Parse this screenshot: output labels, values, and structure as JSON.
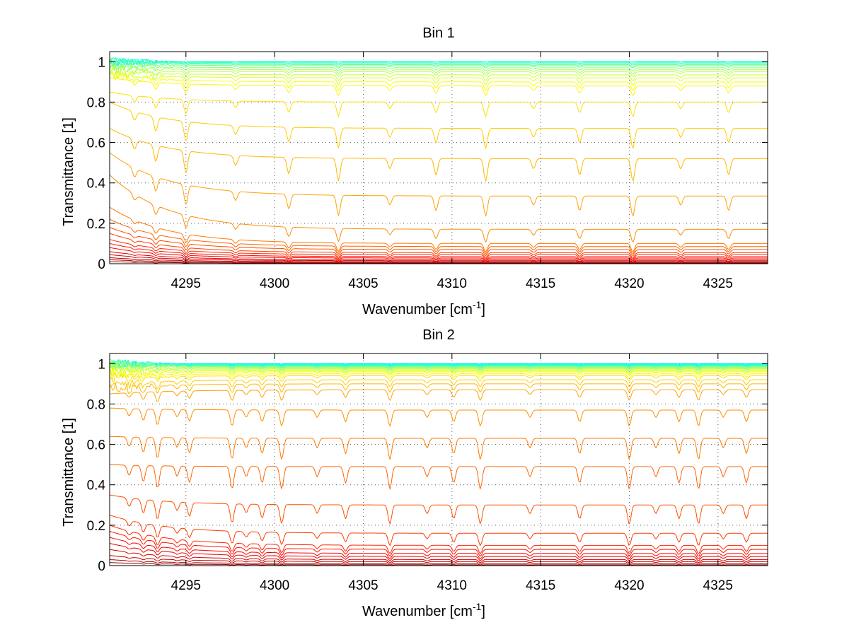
{
  "chart_data": [
    {
      "type": "line",
      "title": "Bin 1",
      "xlabel": "Wavenumber [cm",
      "xlabel_sup": "-1",
      "xlabel_end": "]",
      "ylabel": "Transmittance [1]",
      "xlim": [
        4290.7,
        4327.8
      ],
      "ylim": [
        0,
        1.05
      ],
      "xticks": [
        "4295",
        "4300",
        "4305",
        "4310",
        "4315",
        "4320",
        "4325"
      ],
      "xtick_values": [
        4295,
        4300,
        4305,
        4310,
        4315,
        4320,
        4325
      ],
      "yticks": [
        "0",
        "0.2",
        "0.4",
        "0.6",
        "0.8",
        "1"
      ],
      "ytick_values": [
        0,
        0.2,
        0.4,
        0.6,
        0.8,
        1
      ],
      "grid": true,
      "colormap": "jet",
      "series_levels": [
        1.0,
        1.0,
        1.0,
        1.0,
        0.995,
        0.99,
        0.985,
        0.98,
        0.97,
        0.96,
        0.95,
        0.935,
        0.92,
        0.9,
        0.88,
        0.8,
        0.67,
        0.52,
        0.335,
        0.17,
        0.1,
        0.085,
        0.07,
        0.055,
        0.045,
        0.035,
        0.028,
        0.02,
        0.015,
        0.01,
        0.006,
        0.003
      ],
      "series_start": [
        1.0,
        1.0,
        1.0,
        1.0,
        1.0,
        1.0,
        1.0,
        0.99,
        0.98,
        0.97,
        0.96,
        0.95,
        0.94,
        0.93,
        0.92,
        0.85,
        0.8,
        0.67,
        0.55,
        0.44,
        0.28,
        0.22,
        0.18,
        0.15,
        0.12,
        0.1,
        0.08,
        0.06,
        0.045,
        0.03,
        0.02,
        0.01
      ],
      "line_positions": [
        4292.1,
        4293.3,
        4295.0,
        4297.8,
        4300.8,
        4303.6,
        4306.5,
        4309.1,
        4311.9,
        4314.6,
        4317.2,
        4320.2,
        4322.9,
        4325.6
      ]
    },
    {
      "type": "line",
      "title": "Bin 2",
      "xlabel": "Wavenumber [cm",
      "xlabel_sup": "-1",
      "xlabel_end": "]",
      "ylabel": "Transmittance [1]",
      "xlim": [
        4290.7,
        4327.8
      ],
      "ylim": [
        0,
        1.05
      ],
      "xticks": [
        "4295",
        "4300",
        "4305",
        "4310",
        "4315",
        "4320",
        "4325"
      ],
      "xtick_values": [
        4295,
        4300,
        4305,
        4310,
        4315,
        4320,
        4325
      ],
      "yticks": [
        "0",
        "0.2",
        "0.4",
        "0.6",
        "0.8",
        "1"
      ],
      "ytick_values": [
        0,
        0.2,
        0.4,
        0.6,
        0.8,
        1
      ],
      "grid": true,
      "colormap": "jet",
      "series_levels": [
        1.0,
        0.998,
        0.996,
        0.994,
        0.992,
        0.99,
        0.988,
        0.985,
        0.982,
        0.979,
        0.975,
        0.97,
        0.965,
        0.96,
        0.95,
        0.94,
        0.92,
        0.9,
        0.87,
        0.77,
        0.63,
        0.49,
        0.3,
        0.16,
        0.1,
        0.08,
        0.06,
        0.045,
        0.03,
        0.02,
        0.01,
        0.004
      ],
      "series_start": [
        1.0,
        1.0,
        1.0,
        1.0,
        1.0,
        1.0,
        1.0,
        1.0,
        1.0,
        0.99,
        0.98,
        0.97,
        0.96,
        0.95,
        0.94,
        0.93,
        0.9,
        0.88,
        0.85,
        0.78,
        0.64,
        0.5,
        0.35,
        0.25,
        0.2,
        0.17,
        0.14,
        0.11,
        0.08,
        0.05,
        0.03,
        0.015
      ],
      "line_positions": [
        4291.8,
        4292.6,
        4293.4,
        4294.5,
        4295.2,
        4297.6,
        4298.4,
        4299.3,
        4300.4,
        4302.4,
        4304.0,
        4306.5,
        4308.6,
        4310.1,
        4311.6,
        4314.4,
        4317.2,
        4320.0,
        4321.5,
        4322.8,
        4323.9,
        4325.3,
        4326.6
      ]
    }
  ]
}
